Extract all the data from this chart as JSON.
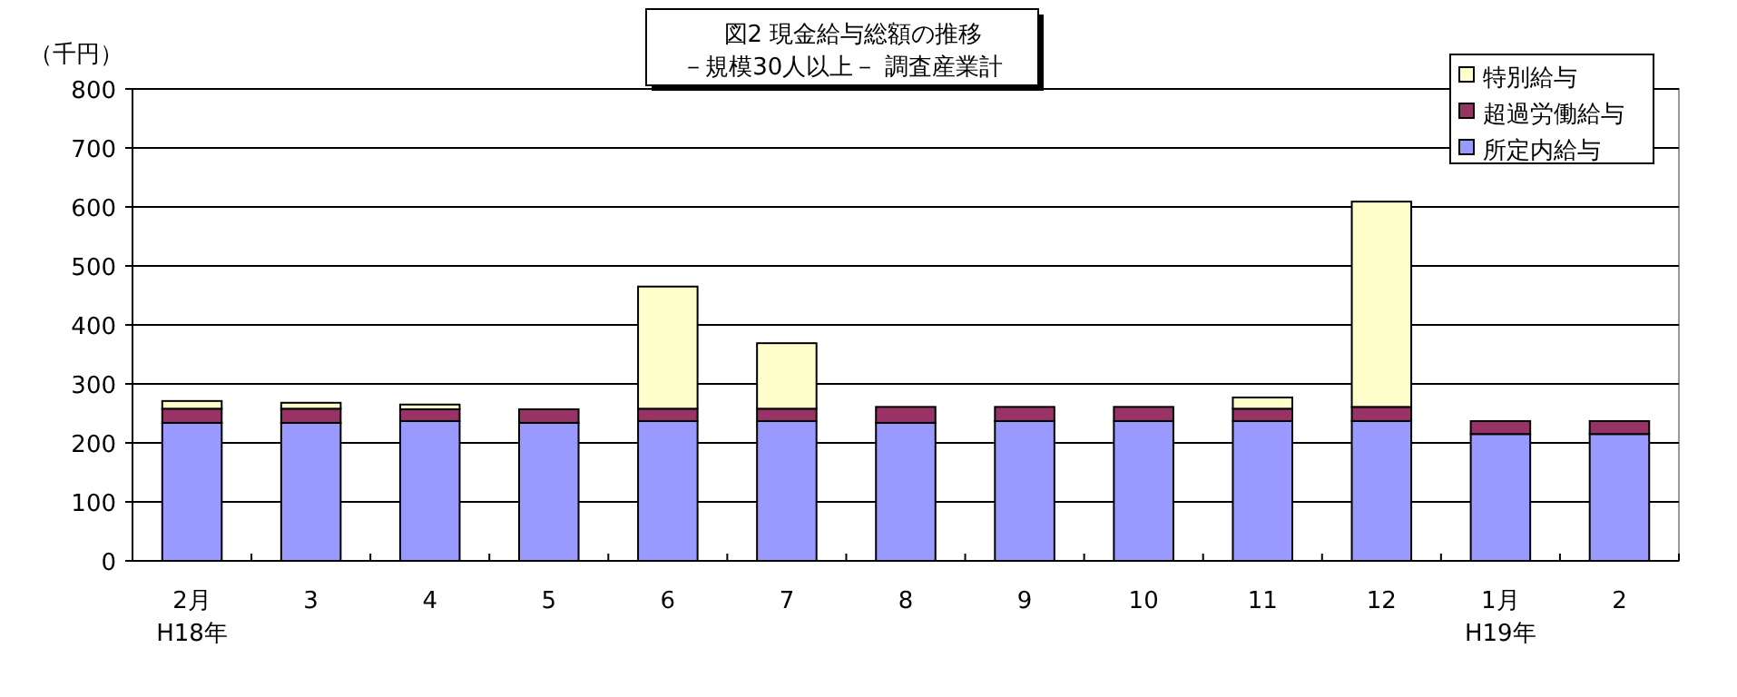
{
  "chart_data": {
    "type": "bar",
    "stacked": true,
    "title": "図2  現金給与総額の推移",
    "subtitle": "－規模30人以上－  調査産業計",
    "ylabel": "（千円）",
    "categories": [
      "2月\nH18年",
      "3",
      "4",
      "5",
      "6",
      "7",
      "8",
      "9",
      "10",
      "11",
      "12",
      "1月\nH19年",
      "2"
    ],
    "series": [
      {
        "name": "所定内給与",
        "color": "#9999ff",
        "values": [
          234,
          234,
          237,
          234,
          237,
          237,
          234,
          237,
          237,
          237,
          237,
          215,
          215
        ]
      },
      {
        "name": "超過労働給与",
        "color": "#993366",
        "values": [
          24,
          24,
          20,
          23,
          21,
          21,
          27,
          24,
          24,
          21,
          24,
          22,
          22
        ]
      },
      {
        "name": "特別給与",
        "color": "#ffffcc",
        "values": [
          13,
          10,
          8,
          null,
          207,
          111,
          null,
          null,
          null,
          19,
          348,
          null,
          null
        ]
      }
    ],
    "ylim": [
      0,
      800
    ],
    "yticks": [
      0,
      100,
      200,
      300,
      400,
      500,
      600,
      700,
      800
    ],
    "grid": "y",
    "legend": "top right"
  }
}
